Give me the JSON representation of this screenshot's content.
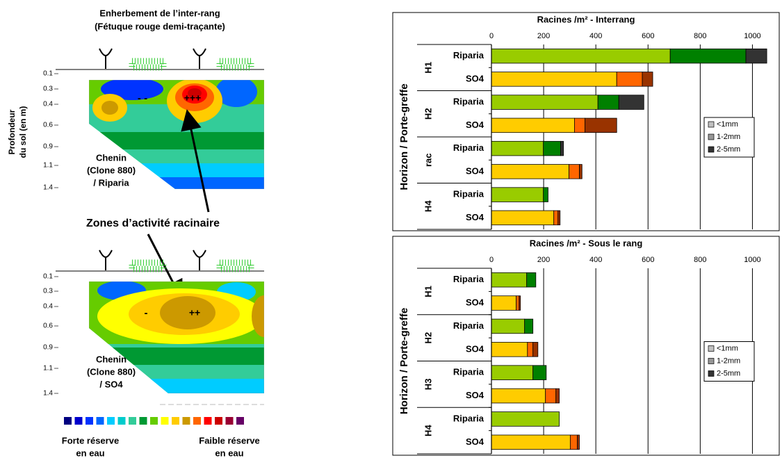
{
  "diagram": {
    "title": [
      "Enherbement de l’inter-rang",
      "(Fétuque rouge demi-traçante)"
    ],
    "depth_axis_label": [
      "Profondeur",
      "du sol (en m)"
    ],
    "depths": [
      "0.1",
      "0.3",
      "0.4",
      "0.6",
      "0.9",
      "1.1",
      "1.4"
    ],
    "top_map": {
      "label": [
        "Chenin",
        "(Clone 880)",
        "/ Riparia"
      ],
      "minus": "- -",
      "plus": "+++"
    },
    "bottom_map": {
      "label": [
        "Chenin",
        "(Clone 880)",
        "/ SO4"
      ],
      "minus": "-",
      "plus": "++"
    },
    "annotation": "Zones d’activité racinaire",
    "scale_left": [
      "Forte réserve",
      "en eau"
    ],
    "scale_right": [
      "Faible réserve",
      "en eau"
    ]
  },
  "chart_data": [
    {
      "type": "bar",
      "orientation": "horizontal",
      "stacked": true,
      "title": "Racines /m² - Interrang",
      "y_label": "Horizon / Porte-greffe",
      "groups": [
        "H1",
        "H2",
        "rac",
        "H4"
      ],
      "categories": [
        "Riparia",
        "SO4",
        "Riparia",
        "SO4",
        "Riparia",
        "SO4",
        "Riparia",
        "SO4"
      ],
      "series": [
        {
          "name": "<1mm",
          "color": "#c0c0c0",
          "point_colors": [
            "#99cc00",
            "#ffcc00",
            "#99cc00",
            "#ffcc00",
            "#99cc00",
            "#ffcc00",
            "#99cc00",
            "#ffcc00"
          ],
          "values": [
            685,
            480,
            408,
            318,
            199,
            297,
            199,
            239
          ]
        },
        {
          "name": "1-2mm",
          "color": "#969696",
          "point_colors": [
            "#008000",
            "#ff6600",
            "#008000",
            "#ff6600",
            "#008000",
            "#ff6600",
            "#008000",
            "#ff6600"
          ],
          "values": [
            290,
            98,
            80,
            40,
            66,
            40,
            18,
            16
          ]
        },
        {
          "name": "2-5mm",
          "color": "#333333",
          "point_colors": [
            "#333333",
            "#993300",
            "#333333",
            "#993300",
            "#333333",
            "#993300",
            "#333333",
            "#993300"
          ],
          "values": [
            80,
            40,
            96,
            122,
            11,
            10,
            0,
            8
          ]
        }
      ],
      "xlim": [
        0,
        1100
      ],
      "xticks": [
        0,
        200,
        400,
        600,
        800,
        1000
      ],
      "grid": true,
      "legend": "right"
    },
    {
      "type": "bar",
      "orientation": "horizontal",
      "stacked": true,
      "title": "Racines /m² - Sous le rang",
      "y_label": "Horizon / Porte-greffe",
      "groups": [
        "H1",
        "H2",
        "H3",
        "H4"
      ],
      "categories": [
        "Riparia",
        "SO4",
        "Riparia",
        "SO4",
        "Riparia",
        "SO4",
        "Riparia",
        "SO4"
      ],
      "series": [
        {
          "name": "<1mm",
          "color": "#c0c0c0",
          "point_colors": [
            "#99cc00",
            "#ffcc00",
            "#99cc00",
            "#ffcc00",
            "#99cc00",
            "#ffcc00",
            "#99cc00",
            "#ffcc00"
          ],
          "values": [
            135,
            95,
            127,
            138,
            159,
            207,
            260,
            302
          ]
        },
        {
          "name": "1-2mm",
          "color": "#969696",
          "point_colors": [
            "#008000",
            "#ff6600",
            "#008000",
            "#ff6600",
            "#008000",
            "#ff6600",
            "#008000",
            "#ff6600"
          ],
          "values": [
            35,
            11,
            32,
            21,
            51,
            40,
            0,
            27
          ]
        },
        {
          "name": "2-5mm",
          "color": "#333333",
          "point_colors": [
            "#333333",
            "#993300",
            "#333333",
            "#993300",
            "#333333",
            "#993300",
            "#333333",
            "#993300"
          ],
          "values": [
            0,
            5,
            0,
            19,
            0,
            13,
            0,
            8
          ]
        }
      ],
      "xlim": [
        0,
        1100
      ],
      "xticks": [
        0,
        200,
        400,
        600,
        800,
        1000
      ],
      "grid": true,
      "legend": "right"
    }
  ]
}
